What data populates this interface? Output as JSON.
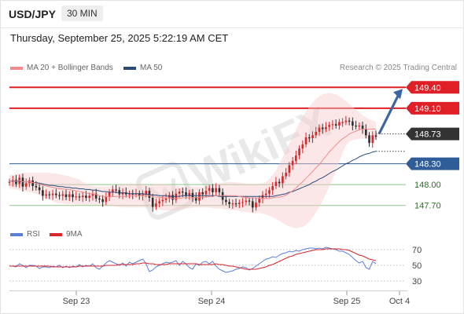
{
  "header": {
    "symbol": "USD/JPY",
    "timeframe": "30 MIN",
    "timestamp": "Thursday, September 25, 2025 5:22:19 AM CET"
  },
  "legend": {
    "ma20": {
      "label": "MA 20 + Bollinger Bands",
      "color": "#f08c8c"
    },
    "ma50": {
      "label": "MA 50",
      "color": "#2b4a7a"
    },
    "rsi": {
      "label": "RSI",
      "color": "#5b7fd6"
    },
    "ma9": {
      "label": "9MA",
      "color": "#d9262c"
    }
  },
  "credit": "Research © 2025 Trading Central",
  "watermark": "WikiFX",
  "colors": {
    "resistance": "#e01f26",
    "pivot": "#2f5d9a",
    "support": "#8fc38a",
    "arrow": "#3a65a0",
    "last": "#333333",
    "bull": "#d7262c",
    "bear": "#2e2e2e"
  },
  "chart_data": [
    {
      "type": "candlestick",
      "title": "USD/JPY",
      "x_ticks": [
        "Sep 23",
        "Sep 24",
        "Sep 25",
        "Oct 4"
      ],
      "ylim": [
        147.55,
        149.55
      ],
      "last_price": "148.73",
      "levels": [
        {
          "value": 149.4,
          "label": "149.40",
          "kind": "resistance"
        },
        {
          "value": 149.1,
          "label": "149.10",
          "kind": "resistance"
        },
        {
          "value": 148.3,
          "label": "148.30",
          "kind": "pivot"
        },
        {
          "value": 148.0,
          "label": "148.00",
          "kind": "support"
        },
        {
          "value": 147.7,
          "label": "147.70",
          "kind": "support"
        }
      ],
      "forecast_arrow": {
        "from": 148.73,
        "to": 149.4
      },
      "close": [
        148.04,
        148.07,
        148.01,
        148.1,
        147.97,
        148.02,
        148.06,
        147.98,
        147.96,
        147.92,
        147.84,
        147.86,
        147.85,
        147.87,
        147.85,
        147.84,
        147.86,
        147.82,
        147.86,
        147.82,
        147.83,
        147.82,
        147.84,
        147.81,
        147.84,
        147.87,
        147.8,
        147.79,
        147.75,
        147.82,
        147.89,
        147.93,
        147.92,
        147.86,
        147.89,
        147.86,
        147.87,
        147.86,
        147.87,
        147.84,
        147.86,
        147.91,
        147.81,
        147.68,
        147.73,
        147.76,
        147.78,
        147.8,
        147.85,
        147.78,
        147.87,
        147.9,
        147.89,
        147.84,
        147.88,
        147.82,
        147.77,
        147.89,
        147.86,
        147.91,
        147.95,
        147.89,
        147.95,
        147.89,
        147.78,
        147.75,
        147.72,
        147.73,
        147.72,
        147.74,
        147.75,
        147.77,
        147.76,
        147.67,
        147.74,
        147.8,
        147.85,
        147.87,
        147.92,
        147.98,
        148.04,
        148.02,
        148.12,
        148.17,
        148.28,
        148.34,
        148.42,
        148.52,
        148.58,
        148.68,
        148.67,
        148.71,
        148.76,
        148.82,
        148.8,
        148.83,
        148.86,
        148.87,
        148.85,
        148.9,
        148.9,
        148.92,
        148.91,
        148.85,
        148.84,
        148.85,
        148.8,
        148.71,
        148.6,
        148.71,
        148.69
      ],
      "ma20": [
        148.04,
        148.06,
        148.05,
        148.06,
        148.04,
        148.04,
        148.04,
        148.03,
        148.02,
        148.01,
        147.99,
        147.98,
        147.97,
        147.96,
        147.95,
        147.94,
        147.94,
        147.93,
        147.93,
        147.92,
        147.91,
        147.9,
        147.89,
        147.88,
        147.87,
        147.87,
        147.86,
        147.84,
        147.83,
        147.83,
        147.83,
        147.83,
        147.83,
        147.83,
        147.83,
        147.83,
        147.84,
        147.84,
        147.84,
        147.84,
        147.84,
        147.84,
        147.84,
        147.83,
        147.82,
        147.82,
        147.81,
        147.81,
        147.81,
        147.8,
        147.8,
        147.8,
        147.81,
        147.81,
        147.81,
        147.81,
        147.81,
        147.82,
        147.82,
        147.82,
        147.83,
        147.83,
        147.84,
        147.84,
        147.84,
        147.84,
        147.84,
        147.84,
        147.84,
        147.83,
        147.82,
        147.82,
        147.81,
        147.81,
        147.81,
        147.8,
        147.8,
        147.8,
        147.8,
        147.81,
        147.82,
        147.82,
        147.83,
        147.85,
        147.88,
        147.91,
        147.95,
        148.0,
        148.04,
        148.09,
        148.14,
        148.19,
        148.24,
        148.29,
        148.35,
        148.41,
        148.47,
        148.52,
        148.57,
        148.62,
        148.66,
        148.69,
        148.73,
        148.75,
        148.77,
        148.79,
        148.8,
        148.8,
        148.8,
        148.8,
        148.8
      ],
      "ma50": [
        148.05,
        148.05,
        148.05,
        148.05,
        148.04,
        148.04,
        148.04,
        148.03,
        148.03,
        148.02,
        148.01,
        148.0,
        147.99,
        147.99,
        147.98,
        147.97,
        147.97,
        147.96,
        147.96,
        147.95,
        147.95,
        147.94,
        147.94,
        147.93,
        147.93,
        147.92,
        147.92,
        147.91,
        147.9,
        147.9,
        147.89,
        147.89,
        147.89,
        147.88,
        147.88,
        147.88,
        147.87,
        147.87,
        147.87,
        147.87,
        147.87,
        147.86,
        147.86,
        147.85,
        147.85,
        147.84,
        147.84,
        147.84,
        147.83,
        147.83,
        147.83,
        147.83,
        147.84,
        147.84,
        147.84,
        147.84,
        147.84,
        147.84,
        147.84,
        147.84,
        147.84,
        147.84,
        147.84,
        147.83,
        147.83,
        147.83,
        147.83,
        147.83,
        147.83,
        147.83,
        147.83,
        147.83,
        147.83,
        147.83,
        147.83,
        147.83,
        147.83,
        147.83,
        147.83,
        147.83,
        147.84,
        147.85,
        147.86,
        147.87,
        147.89,
        147.9,
        147.92,
        147.94,
        147.96,
        147.98,
        148.0,
        148.03,
        148.05,
        148.08,
        148.1,
        148.13,
        148.16,
        148.19,
        148.21,
        148.24,
        148.27,
        148.3,
        148.32,
        148.35,
        148.37,
        148.4,
        148.42,
        148.44,
        148.45,
        148.47,
        148.48
      ],
      "bb_upper": [
        148.14,
        148.14,
        148.15,
        148.16,
        148.17,
        148.17,
        148.17,
        148.17,
        148.17,
        148.17,
        148.17,
        148.17,
        148.17,
        148.16,
        148.16,
        148.15,
        148.14,
        148.13,
        148.12,
        148.1,
        148.09,
        148.07,
        148.04,
        148.01,
        147.99,
        147.98,
        147.97,
        147.97,
        147.97,
        147.97,
        147.97,
        147.98,
        147.99,
        148.0,
        148.0,
        148.01,
        148.01,
        148.01,
        148.01,
        148.01,
        148.0,
        147.99,
        147.99,
        148.0,
        148.01,
        148.01,
        148.01,
        148.0,
        148.0,
        147.99,
        147.98,
        147.98,
        147.97,
        147.97,
        147.97,
        147.97,
        147.97,
        147.97,
        147.97,
        147.97,
        147.98,
        147.99,
        148.01,
        148.02,
        148.03,
        148.04,
        148.04,
        148.04,
        148.03,
        148.03,
        148.02,
        148.01,
        148.01,
        148.01,
        148.01,
        148.01,
        148.02,
        148.04,
        148.08,
        148.14,
        148.21,
        148.3,
        148.39,
        148.49,
        148.59,
        148.69,
        148.79,
        148.89,
        148.97,
        149.05,
        149.12,
        149.18,
        149.23,
        149.27,
        149.3,
        149.31,
        149.32,
        149.31,
        149.3,
        149.27,
        149.24,
        149.2,
        149.16,
        149.12,
        149.08,
        149.04,
        149.0,
        148.97,
        148.94,
        148.92,
        148.9
      ],
      "bb_lower": [
        147.94,
        147.94,
        147.93,
        147.92,
        147.91,
        147.9,
        147.89,
        147.88,
        147.87,
        147.85,
        147.82,
        147.8,
        147.78,
        147.76,
        147.74,
        147.73,
        147.73,
        147.72,
        147.72,
        147.72,
        147.71,
        147.71,
        147.71,
        147.71,
        147.71,
        147.71,
        147.71,
        147.7,
        147.7,
        147.7,
        147.7,
        147.69,
        147.68,
        147.68,
        147.67,
        147.67,
        147.67,
        147.67,
        147.67,
        147.67,
        147.67,
        147.67,
        147.67,
        147.66,
        147.65,
        147.64,
        147.63,
        147.63,
        147.63,
        147.63,
        147.63,
        147.64,
        147.65,
        147.66,
        147.66,
        147.67,
        147.67,
        147.67,
        147.67,
        147.67,
        147.67,
        147.66,
        147.66,
        147.66,
        147.65,
        147.64,
        147.64,
        147.63,
        147.63,
        147.62,
        147.61,
        147.61,
        147.6,
        147.59,
        147.59,
        147.59,
        147.58,
        147.57,
        147.55,
        147.53,
        147.51,
        147.48,
        147.45,
        147.42,
        147.4,
        147.38,
        147.37,
        147.38,
        147.39,
        147.42,
        147.47,
        147.53,
        147.6,
        147.68,
        147.77,
        147.87,
        147.97,
        148.08,
        148.2,
        148.33,
        148.46,
        148.56,
        148.62,
        148.64,
        148.65,
        148.66,
        148.66,
        148.66,
        148.66,
        148.66,
        148.66
      ]
    },
    {
      "type": "line",
      "title": "RSI",
      "ylim": [
        20,
        80
      ],
      "y_ticks": [
        "70",
        "50",
        "30"
      ],
      "series": [
        {
          "name": "RSI",
          "values": [
            49,
            49,
            48,
            52,
            50,
            47,
            50,
            50,
            49,
            46,
            48,
            48,
            47,
            49,
            48,
            50,
            47,
            49,
            47,
            49,
            48,
            51,
            48,
            50,
            49,
            52,
            47,
            45,
            49,
            53,
            56,
            54,
            52,
            50,
            53,
            49,
            54,
            52,
            54,
            56,
            58,
            52,
            42,
            44,
            48,
            50,
            52,
            54,
            53,
            54,
            56,
            50,
            55,
            52,
            47,
            45,
            52,
            50,
            54,
            55,
            52,
            55,
            49,
            45,
            43,
            41,
            42,
            43,
            45,
            46,
            48,
            47,
            44,
            46,
            49,
            52,
            55,
            58,
            59,
            61,
            60,
            63,
            65,
            66,
            68,
            67,
            69,
            68,
            70,
            71,
            72,
            72,
            71,
            72,
            71,
            73,
            72,
            71,
            70,
            68,
            68,
            66,
            64,
            60,
            56,
            53,
            55,
            47,
            45,
            55,
            52
          ]
        },
        {
          "name": "9MA",
          "values": [
            49,
            49,
            49,
            49,
            49,
            49,
            49,
            49,
            49,
            49,
            49,
            49,
            49,
            48,
            48,
            48,
            48,
            48,
            48,
            48,
            48,
            49,
            49,
            49,
            49,
            49,
            49,
            49,
            49,
            50,
            50,
            50,
            50,
            51,
            51,
            51,
            51,
            51,
            52,
            52,
            53,
            53,
            52,
            52,
            51,
            51,
            51,
            51,
            52,
            52,
            52,
            52,
            52,
            52,
            52,
            52,
            52,
            51,
            51,
            51,
            51,
            51,
            52,
            51,
            51,
            50,
            49,
            49,
            48,
            47,
            46,
            45,
            45,
            45,
            45,
            46,
            47,
            48,
            50,
            51,
            53,
            55,
            57,
            59,
            61,
            62,
            64,
            65,
            66,
            67,
            68,
            69,
            70,
            70,
            70,
            71,
            71,
            71,
            71,
            71,
            70,
            70,
            69,
            67,
            65,
            63,
            62,
            60,
            58,
            57,
            56
          ]
        }
      ]
    }
  ]
}
